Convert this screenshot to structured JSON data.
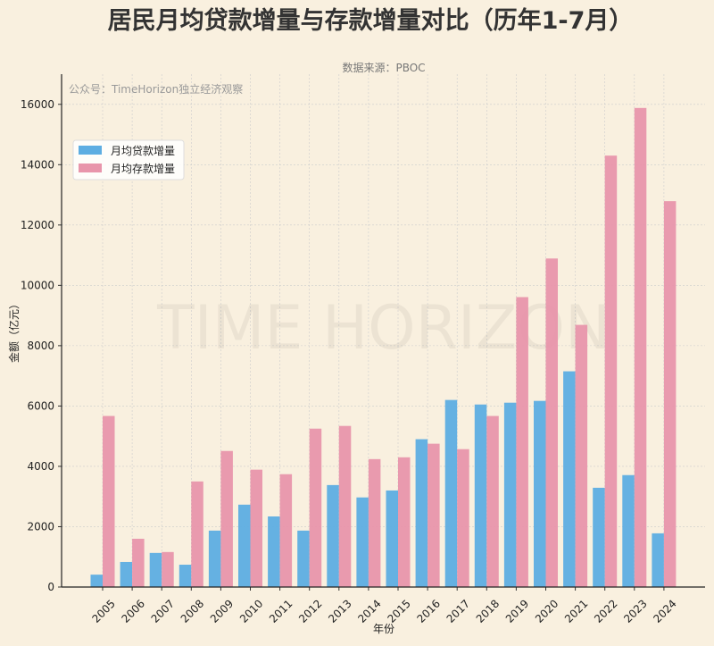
{
  "chart_data": {
    "type": "bar",
    "title": "居民月均贷款增量与存款增量对比（历年1-7月）",
    "subtitle": "数据来源：PBOC",
    "annotation": "公众号：TimeHorizon独立经济观察",
    "watermark": "TIME HORIZON",
    "xlabel": "年份",
    "ylabel": "金额（亿元）",
    "ylim": [
      0,
      17000
    ],
    "yticks": [
      0,
      2000,
      4000,
      6000,
      8000,
      10000,
      12000,
      14000,
      16000
    ],
    "grid": true,
    "legend_position": "upper-left",
    "categories": [
      "2005",
      "2006",
      "2007",
      "2008",
      "2009",
      "2010",
      "2011",
      "2012",
      "2013",
      "2014",
      "2015",
      "2016",
      "2017",
      "2018",
      "2019",
      "2020",
      "2021",
      "2022",
      "2023",
      "2024"
    ],
    "series": [
      {
        "name": "月均贷款增量",
        "color": "#5dade2",
        "values": [
          410,
          830,
          1130,
          740,
          1870,
          2730,
          2340,
          1870,
          3380,
          2970,
          3200,
          4900,
          6200,
          6050,
          6110,
          6170,
          7150,
          3290,
          3710,
          1780
        ]
      },
      {
        "name": "月均存款增量",
        "color": "#e895ab",
        "values": [
          5670,
          1600,
          1160,
          3500,
          4510,
          3890,
          3740,
          5250,
          5340,
          4240,
          4300,
          4750,
          4570,
          5670,
          9610,
          10890,
          8690,
          14300,
          15880,
          12790
        ]
      }
    ]
  }
}
